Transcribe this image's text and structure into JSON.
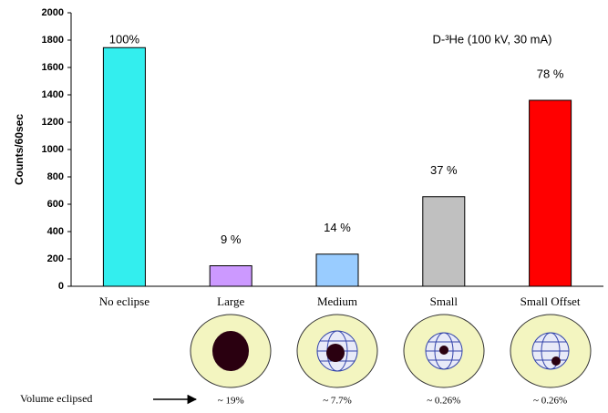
{
  "chart_data": {
    "type": "bar",
    "annotation": "D-³He (100 kV, 30 mA)",
    "ylabel": "Counts/60sec",
    "categories": [
      "No eclipse",
      "Large",
      "Medium",
      "Small",
      "Small Offset"
    ],
    "values": [
      1745,
      150,
      235,
      655,
      1360
    ],
    "colors": [
      "#33eeee",
      "#cc99ff",
      "#99ccff",
      "#c0c0c0",
      "#ff0000"
    ],
    "percent_labels": [
      "100%",
      "9 %",
      "14 %",
      "37 %",
      "78 %"
    ],
    "ylim": [
      0,
      2000
    ],
    "yticks": [
      0,
      200,
      400,
      600,
      800,
      1000,
      1200,
      1400,
      1600,
      1800,
      2000
    ],
    "volume_label": "Volume eclipsed",
    "eclipse_volumes": [
      "~ 19%",
      "~ 7.7%",
      "~ 0.26%",
      "~ 0.26%"
    ]
  }
}
